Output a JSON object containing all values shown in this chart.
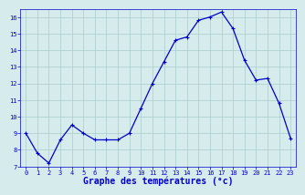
{
  "x": [
    0,
    1,
    2,
    3,
    4,
    5,
    6,
    7,
    8,
    9,
    10,
    11,
    12,
    13,
    14,
    15,
    16,
    17,
    18,
    19,
    20,
    21,
    22,
    23
  ],
  "y": [
    9.0,
    7.8,
    7.2,
    8.6,
    9.5,
    9.0,
    8.6,
    8.6,
    8.6,
    9.0,
    10.5,
    12.0,
    13.3,
    14.6,
    14.8,
    15.8,
    16.0,
    16.3,
    15.3,
    13.4,
    12.2,
    12.3,
    10.8,
    8.7
  ],
  "line_color": "#0000cc",
  "marker": "+",
  "marker_size": 3,
  "marker_color": "#0000cc",
  "bg_color": "#d6ecec",
  "grid_color": "#aacccc",
  "xlabel": "Graphe des températures (°c)",
  "xlim": [
    -0.5,
    23.5
  ],
  "ylim": [
    7,
    16.5
  ],
  "yticks": [
    7,
    8,
    9,
    10,
    11,
    12,
    13,
    14,
    15,
    16
  ],
  "xticks": [
    0,
    1,
    2,
    3,
    4,
    5,
    6,
    7,
    8,
    9,
    10,
    11,
    12,
    13,
    14,
    15,
    16,
    17,
    18,
    19,
    20,
    21,
    22,
    23
  ],
  "tick_color": "#0000cc",
  "tick_fontsize": 5,
  "label_fontsize": 7,
  "linewidth": 0.9
}
